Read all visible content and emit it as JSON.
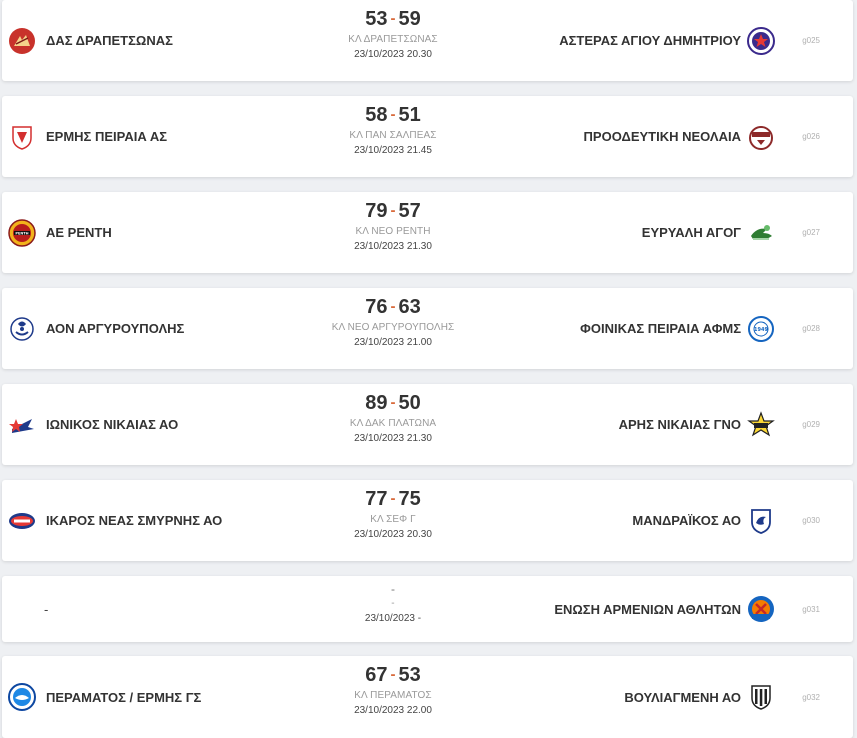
{
  "games": [
    {
      "home": {
        "name": "ΔΑΣ ΔΡΑΠΕΤΣΩΝΑΣ",
        "logo": "das-drapetsonas-logo"
      },
      "home_score": "53",
      "away_score": "59",
      "venue": "ΚΛ ΔΡΑΠΕΤΣΩΝΑΣ",
      "datetime": "23/10/2023 20.30",
      "away": {
        "name": "ΑΣΤΕΡΑΣ ΑΓΙΟΥ ΔΗΜΗΤΡΙΟΥ",
        "logo": "asteras-logo"
      },
      "code": "g025"
    },
    {
      "home": {
        "name": "ΕΡΜΗΣ ΠΕΙΡΑΙΑ ΑΣ",
        "logo": "ermis-peiraia-logo"
      },
      "home_score": "58",
      "away_score": "51",
      "venue": "ΚΛ ΠΑΝ ΣΑΛΠΕΑΣ",
      "datetime": "23/10/2023 21.45",
      "away": {
        "name": "ΠΡΟΟΔΕΥΤΙΚΗ ΝΕΟΛΑΙΑ",
        "logo": "proodeftiki-logo"
      },
      "code": "g026"
    },
    {
      "home": {
        "name": "ΑΕ ΡΕΝΤΗ",
        "logo": "ae-renti-logo"
      },
      "home_score": "79",
      "away_score": "57",
      "venue": "ΚΛ ΝΕΟ ΡΕΝΤΗ",
      "datetime": "23/10/2023 21.30",
      "away": {
        "name": "ΕΥΡΥΑΛΗ ΑΓΟΓ",
        "logo": "evryali-logo"
      },
      "code": "g027"
    },
    {
      "home": {
        "name": "ΑΟΝ ΑΡΓΥΡΟΥΠΟΛΗΣ",
        "logo": "aon-argyroupolis-logo"
      },
      "home_score": "76",
      "away_score": "63",
      "venue": "ΚΛ ΝΕΟ ΑΡΓΥΡΟΥΠΟΛΗΣ",
      "datetime": "23/10/2023 21.00",
      "away": {
        "name": "ΦΟΙΝΙΚΑΣ ΠΕΙΡΑΙΑ ΑΦΜΣ",
        "logo": "foinikas-logo"
      },
      "code": "g028"
    },
    {
      "home": {
        "name": "ΙΩΝΙΚΟΣ ΝΙΚΑΙΑΣ ΑΟ",
        "logo": "ionikos-logo"
      },
      "home_score": "89",
      "away_score": "50",
      "venue": "ΚΛ ΔΑΚ ΠΛΑΤΩΝΑ",
      "datetime": "23/10/2023 21.30",
      "away": {
        "name": "ΑΡΗΣ ΝΙΚΑΙΑΣ ΓΝΟ",
        "logo": "aris-nikaias-logo"
      },
      "code": "g029"
    },
    {
      "home": {
        "name": "ΙΚΑΡΟΣ ΝΕΑΣ ΣΜΥΡΝΗΣ ΑΟ",
        "logo": "ikaros-logo"
      },
      "home_score": "77",
      "away_score": "75",
      "venue": "ΚΛ ΣΕΦ Γ",
      "datetime": "23/10/2023 20.30",
      "away": {
        "name": "ΜΑΝΔΡΑΪΚΟΣ ΑΟ",
        "logo": "mandraikos-logo"
      },
      "code": "g030"
    },
    {
      "home": {
        "name": "-",
        "logo": ""
      },
      "home_score": "",
      "away_score": "",
      "score_text": "-",
      "venue": "-",
      "datetime": "23/10/2023 -",
      "away": {
        "name": "ΕΝΩΣΗ ΑΡΜΕΝΙΩΝ ΑΘΛΗΤΩΝ",
        "logo": "armenion-logo"
      },
      "code": "g031"
    },
    {
      "home": {
        "name": "ΠΕΡΑΜΑΤΟΣ / ΕΡΜΗΣ ΓΣ",
        "logo": "peramatos-logo"
      },
      "home_score": "67",
      "away_score": "53",
      "venue": "ΚΛ ΠΕΡΑΜΑΤΟΣ",
      "datetime": "23/10/2023 22.00",
      "away": {
        "name": "ΒΟΥΛΙΑΓΜΕΝΗ ΑΟ",
        "logo": "vouliagmeni-logo"
      },
      "code": "g032"
    }
  ],
  "score_separator": "-",
  "colors": {
    "accent": "#d96a3b",
    "background": "#eef0f3",
    "card": "#ffffff",
    "muted": "#999999"
  }
}
